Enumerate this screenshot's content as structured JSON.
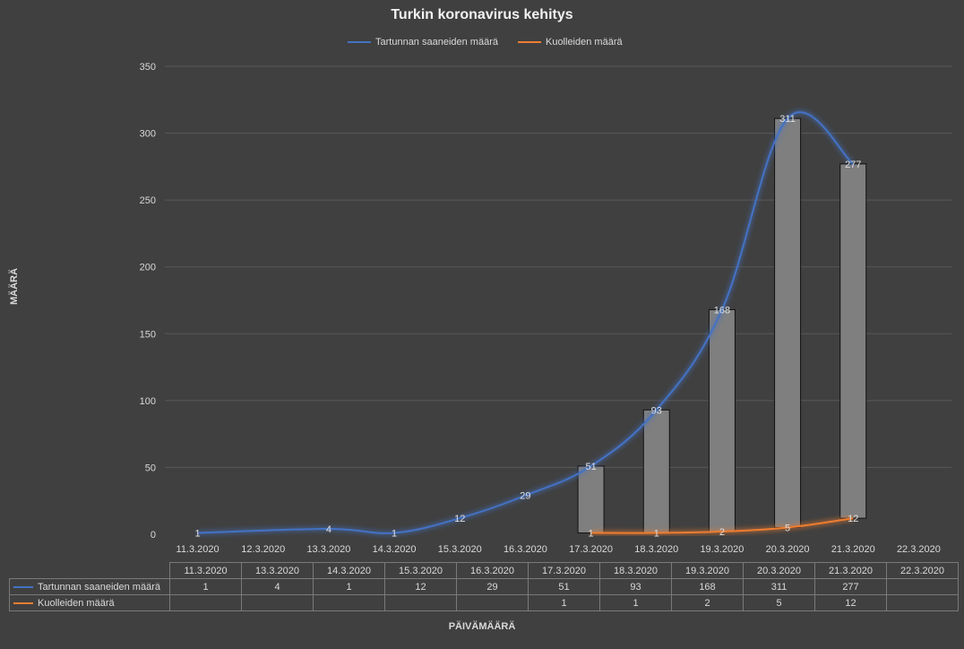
{
  "chart_data": {
    "type": "line",
    "title": "Turkin koronavirus kehitys",
    "xlabel": "PÄIVÄMÄÄRÄ",
    "ylabel": "MÄÄRÄ",
    "ylim": [
      0,
      350
    ],
    "yticks": [
      0,
      50,
      100,
      150,
      200,
      250,
      300,
      350
    ],
    "legend_position": "top",
    "grid": true,
    "x_axis_labels": [
      "11.3.2020",
      "12.3.2020",
      "13.3.2020",
      "14.3.2020",
      "15.3.2020",
      "16.3.2020",
      "17.3.2020",
      "18.3.2020",
      "19.3.2020",
      "20.3.2020",
      "21.3.2020",
      "22.3.2020"
    ],
    "series": [
      {
        "name": "Tartunnan saaneiden määrä",
        "color": "#4472c4",
        "values": [
          1,
          null,
          4,
          1,
          12,
          29,
          51,
          93,
          168,
          311,
          277,
          null
        ]
      },
      {
        "name": "Kuolleiden määrä",
        "color": "#ed7d31",
        "values": [
          null,
          null,
          null,
          null,
          null,
          null,
          1,
          1,
          2,
          5,
          12,
          null
        ]
      }
    ],
    "data_labels": {
      "s0": [
        "1",
        "",
        "4",
        "1",
        "12",
        "29",
        "51",
        "93",
        "168",
        "311",
        "277",
        ""
      ],
      "s1": [
        "",
        "",
        "",
        "",
        "",
        "",
        "1",
        "1",
        "2",
        "5",
        "12",
        ""
      ]
    },
    "bars": [
      {
        "x": "17.3.2020",
        "low": 1,
        "high": 51
      },
      {
        "x": "18.3.2020",
        "low": 1,
        "high": 93
      },
      {
        "x": "19.3.2020",
        "low": 2,
        "high": 168
      },
      {
        "x": "20.3.2020",
        "low": 5,
        "high": 311
      },
      {
        "x": "21.3.2020",
        "low": 12,
        "high": 277
      }
    ],
    "bar_color": "#7f7f7f",
    "table": {
      "headers": [
        "11.3.2020",
        "13.3.2020",
        "14.3.2020",
        "15.3.2020",
        "16.3.2020",
        "17.3.2020",
        "18.3.2020",
        "19.3.2020",
        "20.3.2020",
        "21.3.2020",
        "22.3.2020"
      ],
      "rows": [
        {
          "label": "Tartunnan saaneiden määrä",
          "color": "#4472c4",
          "values": [
            "1",
            "4",
            "1",
            "12",
            "29",
            "51",
            "93",
            "168",
            "311",
            "277",
            ""
          ]
        },
        {
          "label": "Kuolleiden määrä",
          "color": "#ed7d31",
          "values": [
            "",
            "",
            "",
            "",
            "",
            "1",
            "1",
            "2",
            "5",
            "12",
            ""
          ]
        }
      ]
    }
  }
}
